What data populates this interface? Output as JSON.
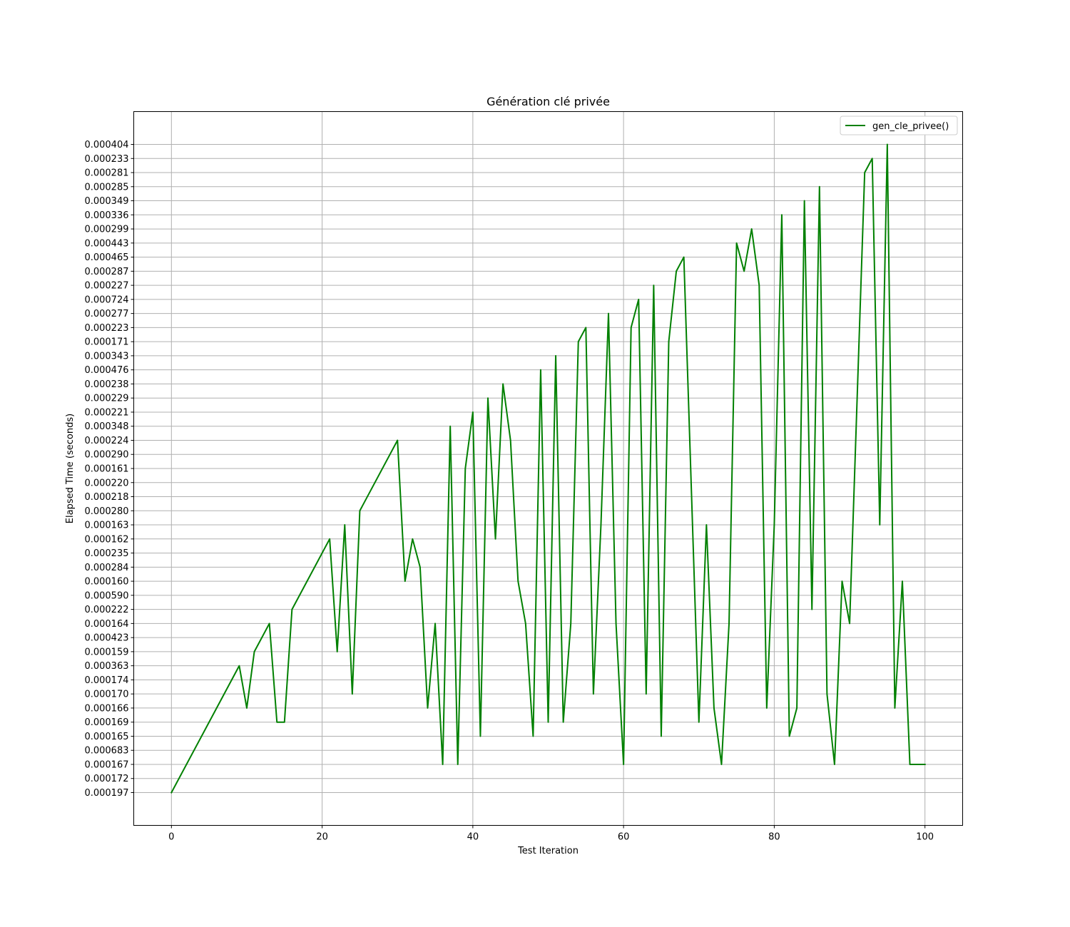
{
  "chart_data": {
    "type": "line",
    "title": "Génération clé privée",
    "xlabel": "Test Iteration",
    "ylabel": "Elapsed Time (seconds)",
    "grid": true,
    "legend_position": "top-right",
    "xlim": [
      -5,
      105
    ],
    "x_ticks": [
      "0",
      "20",
      "40",
      "60",
      "80",
      "100"
    ],
    "y_categories": [
      "0.000197",
      "0.000172",
      "0.000167",
      "0.000683",
      "0.000165",
      "0.000169",
      "0.000166",
      "0.000170",
      "0.000174",
      "0.000363",
      "0.000159",
      "0.000423",
      "0.000164",
      "0.000222",
      "0.000590",
      "0.000160",
      "0.000284",
      "0.000235",
      "0.000162",
      "0.000163",
      "0.000280",
      "0.000218",
      "0.000220",
      "0.000161",
      "0.000290",
      "0.000224",
      "0.000348",
      "0.000221",
      "0.000229",
      "0.000238",
      "0.000476",
      "0.000343",
      "0.000171",
      "0.000223",
      "0.000277",
      "0.000724",
      "0.000227",
      "0.000287",
      "0.000465",
      "0.000443",
      "0.000299",
      "0.000336",
      "0.000349",
      "0.000285",
      "0.000281",
      "0.000233",
      "0.000404"
    ],
    "series": [
      {
        "name": "gen_cle_privee()",
        "color": "#008000",
        "x": [
          0,
          9,
          10,
          11,
          13,
          14,
          15,
          16,
          21,
          22,
          23,
          24,
          25,
          30,
          31,
          32,
          33,
          34,
          35,
          36,
          37,
          38,
          39,
          40,
          41,
          42,
          43,
          44,
          45,
          46,
          47,
          48,
          49,
          50,
          51,
          52,
          53,
          54,
          55,
          56,
          57,
          58,
          59,
          60,
          61,
          62,
          63,
          64,
          65,
          66,
          67,
          68,
          70,
          71,
          72,
          73,
          74,
          75,
          76,
          77,
          78,
          79,
          80,
          81,
          82,
          83,
          84,
          85,
          86,
          87,
          88,
          89,
          90,
          92,
          93,
          94,
          95,
          96,
          97,
          98,
          99,
          100
        ],
        "y": [
          "0.000197",
          "0.000363",
          "0.000166",
          "0.000159",
          "0.000164",
          "0.000169",
          "0.000169",
          "0.000222",
          "0.000162",
          "0.000159",
          "0.000163",
          "0.000170",
          "0.000280",
          "0.000224",
          "0.000160",
          "0.000162",
          "0.000284",
          "0.000166",
          "0.000164",
          "0.000167",
          "0.000348",
          "0.000167",
          "0.000161",
          "0.000221",
          "0.000165",
          "0.000229",
          "0.000162",
          "0.000238",
          "0.000224",
          "0.000160",
          "0.000164",
          "0.000165",
          "0.000476",
          "0.000169",
          "0.000343",
          "0.000169",
          "0.000164",
          "0.000171",
          "0.000223",
          "0.000170",
          "0.000163",
          "0.000277",
          "0.000164",
          "0.000167",
          "0.000223",
          "0.000724",
          "0.000170",
          "0.000227",
          "0.000165",
          "0.000171",
          "0.000287",
          "0.000465",
          "0.000169",
          "0.000163",
          "0.000166",
          "0.000167",
          "0.000164",
          "0.000443",
          "0.000287",
          "0.000299",
          "0.000227",
          "0.000166",
          "0.000163",
          "0.000336",
          "0.000165",
          "0.000166",
          "0.000349",
          "0.000222",
          "0.000285",
          "0.000170",
          "0.000167",
          "0.000160",
          "0.000164",
          "0.000281",
          "0.000233",
          "0.000163",
          "0.000404",
          "0.000166",
          "0.000160",
          "0.000167",
          "0.000167",
          "0.000167"
        ]
      }
    ]
  }
}
